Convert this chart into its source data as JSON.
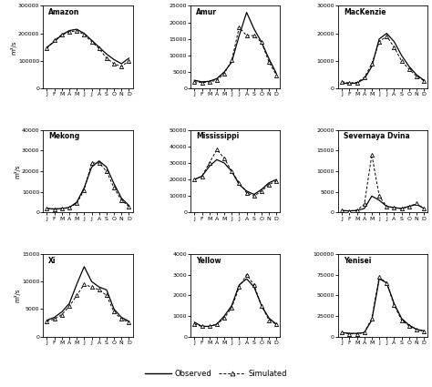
{
  "months": [
    "J",
    "F",
    "M",
    "A",
    "M",
    "J",
    "J",
    "A",
    "S",
    "O",
    "N",
    "D"
  ],
  "rivers": [
    {
      "name": "Amazon",
      "observed": [
        150000,
        170000,
        195000,
        210000,
        215000,
        200000,
        175000,
        150000,
        125000,
        105000,
        90000,
        110000
      ],
      "simulated": [
        145000,
        175000,
        195000,
        205000,
        210000,
        195000,
        170000,
        145000,
        110000,
        90000,
        80000,
        100000
      ],
      "ylim": [
        0,
        300000
      ],
      "yticks": [
        0,
        100000,
        200000,
        300000
      ]
    },
    {
      "name": "Amur",
      "observed": [
        2500,
        2000,
        2200,
        3000,
        5000,
        8000,
        16000,
        23000,
        18000,
        14000,
        9000,
        4500
      ],
      "simulated": [
        2000,
        1800,
        2000,
        2500,
        4500,
        8500,
        18500,
        16000,
        16000,
        14000,
        8000,
        4000
      ],
      "ylim": [
        0,
        25000
      ],
      "yticks": [
        0,
        5000,
        10000,
        15000,
        20000,
        25000
      ]
    },
    {
      "name": "MacKenzie",
      "observed": [
        2000,
        1800,
        2000,
        3500,
        8000,
        18000,
        20000,
        17000,
        12000,
        8000,
        5000,
        3000
      ],
      "simulated": [
        2500,
        2000,
        2200,
        4000,
        9000,
        17000,
        19000,
        15000,
        10000,
        7000,
        4500,
        2800
      ],
      "ylim": [
        0,
        30000
      ],
      "yticks": [
        0,
        10000,
        20000,
        30000
      ]
    },
    {
      "name": "Mekong",
      "observed": [
        2000,
        1800,
        2000,
        2500,
        5000,
        12000,
        22000,
        25000,
        22000,
        14000,
        7000,
        3500
      ],
      "simulated": [
        2000,
        1600,
        1800,
        2500,
        4500,
        11000,
        24000,
        24000,
        20000,
        12000,
        6000,
        3000
      ],
      "ylim": [
        0,
        40000
      ],
      "yticks": [
        0,
        10000,
        20000,
        30000,
        40000
      ]
    },
    {
      "name": "Mississippi",
      "observed": [
        20000,
        22000,
        28000,
        32000,
        30000,
        25000,
        17000,
        13000,
        11000,
        14000,
        18000,
        20000
      ],
      "simulated": [
        20000,
        22000,
        30000,
        38000,
        33000,
        25000,
        18000,
        12000,
        10000,
        13000,
        17000,
        19000
      ],
      "ylim": [
        0,
        50000
      ],
      "yticks": [
        0,
        10000,
        20000,
        30000,
        40000,
        50000
      ]
    },
    {
      "name": "Severnaya Dvina",
      "observed": [
        500,
        400,
        500,
        1000,
        4000,
        3000,
        1500,
        1200,
        1000,
        1500,
        2000,
        1000
      ],
      "simulated": [
        500,
        400,
        600,
        2000,
        14000,
        4000,
        1500,
        1200,
        1000,
        1500,
        2200,
        1000
      ],
      "ylim": [
        0,
        20000
      ],
      "yticks": [
        0,
        5000,
        10000,
        15000,
        20000
      ]
    },
    {
      "name": "Xi",
      "observed": [
        3000,
        3500,
        4500,
        6000,
        9500,
        12700,
        10000,
        9000,
        8500,
        5000,
        3500,
        2800
      ],
      "simulated": [
        2800,
        3200,
        4000,
        5500,
        7500,
        9500,
        9000,
        8500,
        7500,
        4500,
        3200,
        2600
      ],
      "ylim": [
        0,
        15000
      ],
      "yticks": [
        0,
        5000,
        10000,
        15000
      ]
    },
    {
      "name": "Yellow",
      "observed": [
        700,
        500,
        500,
        600,
        1000,
        1500,
        2500,
        2800,
        2400,
        1500,
        900,
        600
      ],
      "simulated": [
        600,
        500,
        500,
        600,
        900,
        1400,
        2400,
        3000,
        2500,
        1500,
        800,
        600
      ],
      "ylim": [
        0,
        4000
      ],
      "yticks": [
        0,
        1000,
        2000,
        3000,
        4000
      ]
    },
    {
      "name": "Yenisei",
      "observed": [
        5000,
        4000,
        4000,
        5000,
        20000,
        70000,
        65000,
        40000,
        22000,
        14000,
        9000,
        7000
      ],
      "simulated": [
        5000,
        3500,
        3500,
        5000,
        22000,
        72000,
        65000,
        38000,
        20000,
        13000,
        8500,
        6500
      ],
      "ylim": [
        0,
        100000
      ],
      "yticks": [
        0,
        25000,
        50000,
        75000,
        100000
      ]
    }
  ],
  "ylabel": "m³/s",
  "legend_obs": "Observed",
  "legend_sim": "Simulated"
}
